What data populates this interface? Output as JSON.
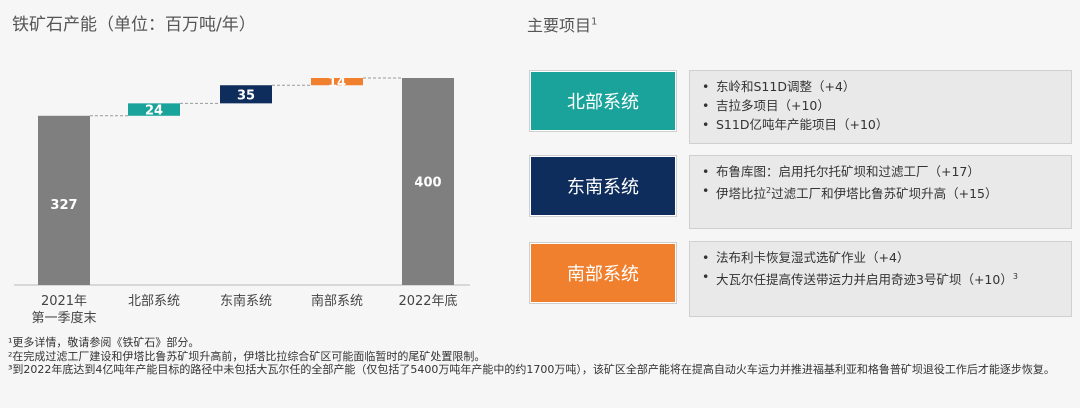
{
  "left": {
    "title": "铁矿石产能（单位：百万吨/年）"
  },
  "right": {
    "title": "主要项目",
    "title_sup": "1"
  },
  "chart_data": {
    "type": "bar",
    "subtype": "waterfall",
    "title": "铁矿石产能（单位：百万吨/年）",
    "categories": [
      "2021年\n第一季度末",
      "北部系统",
      "东南系统",
      "南部系统",
      "2022年底"
    ],
    "values": [
      327,
      24,
      35,
      14,
      400
    ],
    "kinds": [
      "total",
      "delta",
      "delta",
      "delta",
      "total"
    ],
    "colors": [
      "#7f7f7f",
      "#1aa39a",
      "#0f2d5c",
      "#f07f2e",
      "#7f7f7f"
    ],
    "ylim": [
      0,
      410
    ],
    "grid": false
  },
  "systems": [
    {
      "name": "北部系统",
      "color": "#1aa39a",
      "items": [
        {
          "text": "东岭和S11D调整（+4）"
        },
        {
          "text": "吉拉多项目（+10）"
        },
        {
          "text": "S11D亿吨年产能项目（+10）"
        }
      ]
    },
    {
      "name": "东南系统",
      "color": "#0f2d5c",
      "items": [
        {
          "text": "布鲁库图：启用托尔托矿坝和过滤工厂（+17）"
        },
        {
          "pre": "伊塔比拉",
          "sup": "2",
          "post": "过滤工厂和伊塔比鲁苏矿坝升高（+15）"
        }
      ]
    },
    {
      "name": "南部系统",
      "color": "#f07f2e",
      "items": [
        {
          "text": "法布利卡恢复湿式选矿作业（+4）"
        },
        {
          "pre": "大瓦尔任提高传送带运力并启用奇迹3号矿坝（+10）",
          "sup": "3"
        }
      ]
    }
  ],
  "footnotes": [
    "¹更多详情，敬请参阅《铁矿石》部分。",
    "²在完成过滤工厂建设和伊塔比鲁苏矿坝升高前，伊塔比拉综合矿区可能面临暂时的尾矿处置限制。",
    "³到2022年底达到4亿吨年产能目标的路径中未包括大瓦尔任的全部产能（仅包括了5400万吨年产能中的约1700万吨），该矿区全部产能将在提高自动火车运力并推进福基利亚和格鲁普矿坝退役工作后才能逐步恢复。"
  ]
}
